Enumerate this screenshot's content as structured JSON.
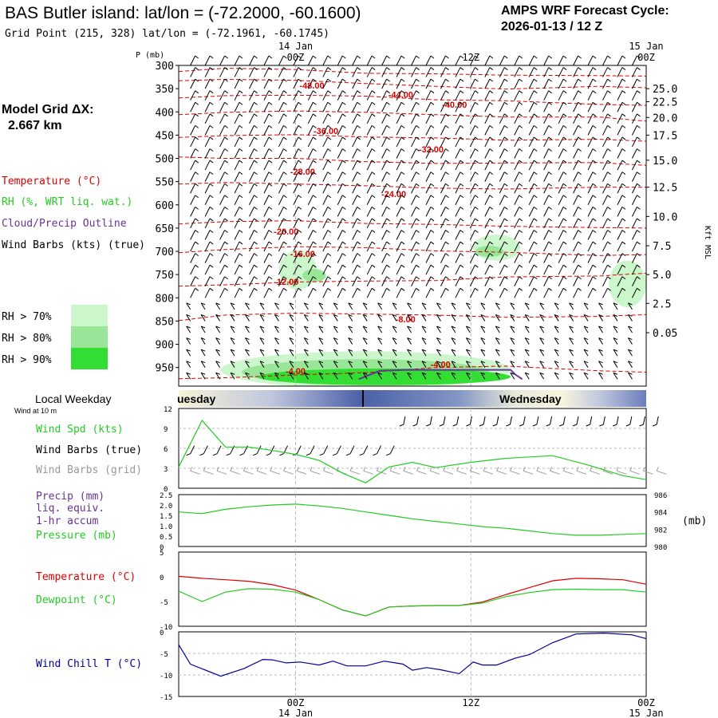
{
  "header": {
    "title": "BAS Butler island:  lat/lon = (-72.2000, -60.1600)",
    "subtitle": "Grid Point (215, 328) lat/lon = (-72.1961, -60.1745)",
    "cycle_label": "AMPS WRF Forecast Cycle:",
    "cycle_value": "2026-01-13 / 12  Z"
  },
  "model": {
    "label": "Model Grid ΔX:",
    "value": "2.667 km"
  },
  "legend": {
    "temperature": "Temperature (°C)",
    "rh": "RH (%, WRT liq. wat.)",
    "cloud": "Cloud/Precip Outline",
    "wind": "Wind Barbs (kts) (true)",
    "rh70": "RH > 70%",
    "rh80": "RH > 80%",
    "rh90": "RH > 90%"
  },
  "colors": {
    "temp": "#dd0000",
    "rh70": "#ccf6cc",
    "rh80": "#99e699",
    "rh90": "#33dd33",
    "cloud": "#663399",
    "green": "#22cc22",
    "gray": "#999999",
    "blue": "#000099",
    "grid": "#bbbbbb"
  },
  "time_axis": {
    "top_dates": [
      {
        "x": 0.5,
        "label": "14 Jan"
      },
      {
        "x": 2,
        "label": "15 Jan"
      }
    ],
    "top_hours": [
      {
        "x": 0.5,
        "label": "00Z"
      },
      {
        "x": 1.25,
        "label": "12Z"
      },
      {
        "x": 2,
        "label": "00Z"
      }
    ],
    "bottom_hours": [
      {
        "x": 0.5,
        "label": "00Z"
      },
      {
        "x": 1.25,
        "label": "12Z"
      },
      {
        "x": 2,
        "label": "00Z"
      }
    ],
    "bottom_dates": [
      {
        "x": 0.5,
        "label": "14 Jan"
      },
      {
        "x": 2,
        "label": "15 Jan"
      }
    ]
  },
  "weekday": {
    "label": "Local Weekday",
    "day1": "uesday",
    "day2": "Wednesday",
    "wind_note": "Wind at 10 m"
  },
  "chart_data": [
    {
      "type": "line",
      "name": "profile",
      "ylabel_left": "P (mb)",
      "ylabel_right": "Kft MSL",
      "y_ticks": [
        300,
        350,
        400,
        450,
        500,
        550,
        600,
        650,
        700,
        750,
        800,
        850,
        900,
        950
      ],
      "kft_ticks": [
        {
          "p": 350,
          "label": "25.0"
        },
        {
          "p": 378,
          "label": "22.5"
        },
        {
          "p": 412,
          "label": "20.0"
        },
        {
          "p": 450,
          "label": "17.5"
        },
        {
          "p": 504,
          "label": "15.0"
        },
        {
          "p": 562,
          "label": "12.5"
        },
        {
          "p": 625,
          "label": "10.0"
        },
        {
          "p": 688,
          "label": "7.5"
        },
        {
          "p": 750,
          "label": "5.0"
        },
        {
          "p": 812,
          "label": "2.5"
        },
        {
          "p": 875,
          "label": "0.05"
        }
      ],
      "isotherms": [
        {
          "label": "-48.00",
          "lx": 0.57,
          "lp": 343,
          "pts": [
            [
              0,
              313
            ],
            [
              0.2,
              306
            ],
            [
              0.5,
              309
            ],
            [
              0.8,
              317
            ],
            [
              1.1,
              318
            ],
            [
              1.4,
              321
            ],
            [
              1.8,
              322
            ],
            [
              2.0,
              323
            ]
          ]
        },
        {
          "label": "-44.00",
          "lx": 0.95,
          "lp": 363,
          "pts": [
            [
              0,
              333
            ],
            [
              0.2,
              330
            ],
            [
              0.5,
              332
            ],
            [
              0.8,
              339
            ],
            [
              1.1,
              345
            ],
            [
              1.4,
              351
            ],
            [
              1.8,
              345
            ],
            [
              2.0,
              348
            ]
          ]
        },
        {
          "label": "-40.00",
          "lx": 1.18,
          "lp": 384,
          "pts": [
            [
              0,
              370
            ],
            [
              0.2,
              365
            ],
            [
              0.5,
              364
            ],
            [
              0.8,
              366
            ],
            [
              1.1,
              374
            ],
            [
              1.4,
              376
            ],
            [
              1.8,
              384
            ],
            [
              2.0,
              386
            ]
          ]
        },
        {
          "label": "-36.00",
          "lx": 0.63,
          "lp": 441,
          "pts": [
            [
              0,
              406
            ],
            [
              0.2,
              401
            ],
            [
              0.5,
              398
            ],
            [
              0.8,
              401
            ],
            [
              1.1,
              406
            ],
            [
              1.4,
              411
            ],
            [
              1.8,
              411
            ],
            [
              2.0,
              420
            ]
          ]
        },
        {
          "label": "-32.00",
          "lx": 1.08,
          "lp": 480,
          "pts": [
            [
              0,
              455
            ],
            [
              0.2,
              451
            ],
            [
              0.5,
              449
            ],
            [
              0.8,
              454
            ],
            [
              1.1,
              456
            ],
            [
              1.4,
              461
            ],
            [
              1.8,
              459
            ],
            [
              2.0,
              463
            ]
          ]
        },
        {
          "label": "-28.00",
          "lx": 0.53,
          "lp": 528,
          "pts": [
            [
              0,
              497
            ],
            [
              0.2,
              500
            ],
            [
              0.5,
              500
            ],
            [
              0.8,
              507
            ],
            [
              1.1,
              511
            ],
            [
              1.4,
              510
            ],
            [
              1.8,
              509
            ],
            [
              2.0,
              515
            ]
          ]
        },
        {
          "label": "-24.00",
          "lx": 0.92,
          "lp": 576,
          "pts": [
            [
              0,
              555
            ],
            [
              0.2,
              552
            ],
            [
              0.5,
              555
            ],
            [
              0.8,
              559
            ],
            [
              1.1,
              564
            ],
            [
              1.4,
              566
            ],
            [
              1.8,
              562
            ],
            [
              2.0,
              562
            ]
          ]
        },
        {
          "label": "-20.00",
          "lx": 0.46,
          "lp": 657,
          "pts": [
            [
              0,
              641
            ],
            [
              0.2,
              636
            ],
            [
              0.5,
              634
            ],
            [
              0.8,
              640
            ],
            [
              1.1,
              642
            ],
            [
              1.4,
              646
            ],
            [
              1.8,
              649
            ],
            [
              2.0,
              650
            ]
          ]
        },
        {
          "label": "-16.00",
          "lx": 0.53,
          "lp": 705,
          "pts": [
            [
              0,
              703
            ],
            [
              0.2,
              696
            ],
            [
              0.5,
              690
            ],
            [
              0.8,
              692
            ],
            [
              1.1,
              699
            ],
            [
              1.4,
              702
            ],
            [
              1.8,
              709
            ],
            [
              2.0,
              707
            ]
          ]
        },
        {
          "label": "-12.00",
          "lx": 0.46,
          "lp": 765,
          "pts": [
            [
              0,
              775
            ],
            [
              0.2,
              772
            ],
            [
              0.5,
              766
            ],
            [
              0.8,
              764
            ],
            [
              1.1,
              763
            ],
            [
              1.4,
              755
            ],
            [
              1.8,
              753
            ],
            [
              2.0,
              747
            ]
          ]
        },
        {
          "label": "-8.00",
          "lx": 0.97,
          "lp": 846,
          "pts": [
            [
              0,
              849
            ],
            [
              0.2,
              837
            ],
            [
              0.5,
              833
            ],
            [
              0.8,
              835
            ],
            [
              1.1,
              837
            ],
            [
              1.4,
              842
            ],
            [
              1.8,
              840
            ],
            [
              2.0,
              836
            ]
          ]
        },
        {
          "label": "-4.00",
          "lx": 0.5,
          "lp": 957,
          "pts": [
            [
              0,
              974
            ],
            [
              0.2,
              972
            ],
            [
              0.5,
              966
            ],
            [
              0.8,
              961
            ],
            [
              1.1,
              950
            ],
            [
              1.4,
              947
            ],
            [
              1.8,
              957
            ],
            [
              2.0,
              960
            ]
          ]
        },
        {
          "label": "-4.00",
          "lx": 1.12,
          "lp": 943,
          "pts": []
        }
      ],
      "rh_regions": [
        {
          "level": "rh70",
          "cx": 0.51,
          "cp": 740,
          "rx": 0.08,
          "rp": 42
        },
        {
          "level": "rh80",
          "cx": 0.58,
          "cp": 752,
          "rx": 0.05,
          "rp": 14
        },
        {
          "level": "rh70",
          "cx": 1.36,
          "cp": 692,
          "rx": 0.1,
          "rp": 28
        },
        {
          "level": "rh80",
          "cx": 1.33,
          "cp": 700,
          "rx": 0.06,
          "rp": 12
        },
        {
          "level": "rh70",
          "cx": 1.92,
          "cp": 770,
          "rx": 0.08,
          "rp": 50
        },
        {
          "level": "rh70",
          "cx": 0.8,
          "cp": 955,
          "rx": 0.62,
          "rp": 40
        },
        {
          "level": "rh80",
          "cx": 0.8,
          "cp": 960,
          "rx": 0.53,
          "rp": 28
        },
        {
          "level": "rh90",
          "cx": 0.88,
          "cp": 970,
          "rx": 0.54,
          "rp": 18
        }
      ],
      "cloud_outline": [
        [
          0.77,
          975
        ],
        [
          0.86,
          957
        ],
        [
          0.98,
          955
        ],
        [
          1.2,
          955
        ],
        [
          1.42,
          955
        ],
        [
          1.44,
          965
        ],
        [
          1.47,
          975
        ]
      ]
    },
    {
      "type": "line",
      "name": "wind",
      "series_labels": [
        "Wind Spd (kts)",
        "Wind Barbs (true)",
        "Wind Barbs (grid)"
      ],
      "y_ticks": [
        0,
        3,
        6,
        9,
        12
      ],
      "x": [
        0,
        0.1,
        0.2,
        0.3,
        0.38,
        0.5,
        0.6,
        0.7,
        0.8,
        0.9,
        1.0,
        1.1,
        1.25,
        1.4,
        1.6,
        1.75,
        1.9,
        2.0
      ],
      "speed": [
        3.2,
        10.2,
        6.2,
        6.2,
        5.8,
        5.1,
        4.2,
        2.3,
        0.8,
        3.2,
        3.9,
        3.1,
        3.9,
        4.5,
        4.9,
        3.5,
        1.9,
        1.3
      ]
    },
    {
      "type": "line",
      "name": "precip-pressure",
      "series_labels": [
        "Precip (mm)",
        "liq. equiv.",
        "1-hr accum",
        "Pressure (mb)"
      ],
      "y_ticks_left": [
        "0",
        "0.5",
        "1.0",
        "1.5",
        "2.0",
        "2.5"
      ],
      "y_ticks_right": [
        980,
        982,
        984,
        986
      ],
      "right_unit": "(mb)",
      "x": [
        0,
        0.1,
        0.2,
        0.3,
        0.4,
        0.5,
        0.6,
        0.7,
        0.8,
        0.9,
        1.0,
        1.1,
        1.2,
        1.3,
        1.4,
        1.5,
        1.6,
        1.7,
        1.8,
        1.9,
        2.0
      ],
      "pressure": [
        984.0,
        983.8,
        984.3,
        984.6,
        984.8,
        984.9,
        984.7,
        984.4,
        984.0,
        983.6,
        983.2,
        982.9,
        982.6,
        982.3,
        982.1,
        981.8,
        981.5,
        981.3,
        981.3,
        981.4,
        981.5
      ]
    },
    {
      "type": "line",
      "name": "temp-dew",
      "series_labels": [
        "Temperature (°C)",
        "Dewpoint (°C)"
      ],
      "y_ticks": [
        5,
        0,
        -5,
        -10
      ],
      "x": [
        0,
        0.1,
        0.2,
        0.3,
        0.4,
        0.5,
        0.6,
        0.7,
        0.8,
        0.9,
        1.0,
        1.1,
        1.2,
        1.3,
        1.4,
        1.5,
        1.6,
        1.7,
        1.8,
        1.9,
        2.0
      ],
      "temperature": [
        0.1,
        -0.3,
        -0.6,
        -0.9,
        -1.6,
        -2.7,
        -4.6,
        -6.7,
        -7.9,
        -6.1,
        -5.9,
        -5.8,
        -5.8,
        -5.1,
        -3.6,
        -2.2,
        -0.8,
        -0.3,
        -0.4,
        -0.6,
        -1.5
      ],
      "dewpoint": [
        -2.9,
        -5.0,
        -3.1,
        -2.4,
        -2.5,
        -3.1,
        -4.6,
        -6.7,
        -7.9,
        -6.1,
        -5.9,
        -5.8,
        -5.8,
        -5.3,
        -4.0,
        -3.2,
        -2.6,
        -2.5,
        -2.6,
        -2.6,
        -3.1
      ]
    },
    {
      "type": "line",
      "name": "wind-chill",
      "series_labels": [
        "Wind Chill T (°C)"
      ],
      "y_ticks": [
        0,
        -5,
        -10,
        -15
      ],
      "x": [
        0,
        0.05,
        0.18,
        0.28,
        0.36,
        0.4,
        0.46,
        0.52,
        0.6,
        0.66,
        0.72,
        0.8,
        0.88,
        0.96,
        1.0,
        1.06,
        1.12,
        1.2,
        1.26,
        1.3,
        1.36,
        1.44,
        1.5,
        1.6,
        1.7,
        1.82,
        1.94,
        2.0
      ],
      "chill": [
        -3.0,
        -7.5,
        -10.3,
        -8.5,
        -6.4,
        -6.5,
        -7.2,
        -7.0,
        -7.7,
        -6.8,
        -7.9,
        -7.9,
        -6.8,
        -7.5,
        -8.9,
        -8.3,
        -8.8,
        -9.7,
        -7.0,
        -7.7,
        -7.7,
        -6.1,
        -5.3,
        -2.5,
        -0.5,
        -0.3,
        -0.7,
        -1.6
      ]
    }
  ]
}
